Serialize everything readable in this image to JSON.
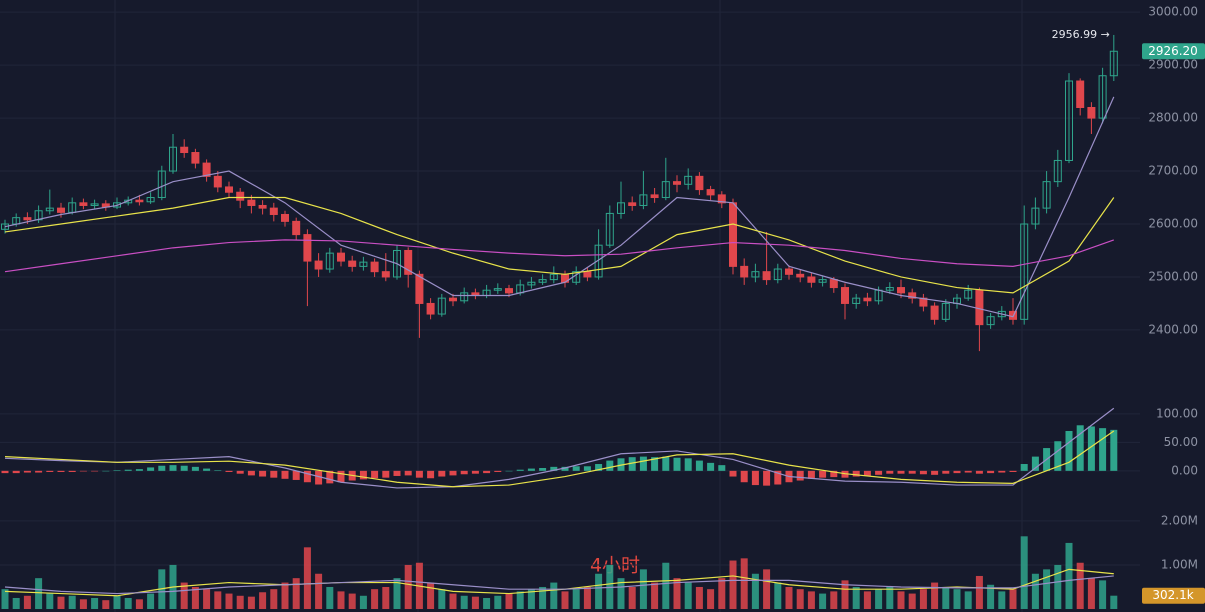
{
  "watermark": "4小时",
  "chart_data": [
    {
      "type": "candlestick",
      "up_color": "#2fa58c",
      "down_color": "#e0474c",
      "ylim": [
        2296,
        3023
      ],
      "yticks": [
        {
          "value": 2400,
          "label": "2400.00"
        },
        {
          "value": 2500,
          "label": "2500.00"
        },
        {
          "value": 2600,
          "label": "2600.00"
        },
        {
          "value": 2700,
          "label": "2700.00"
        },
        {
          "value": 2800,
          "label": "2800.00"
        },
        {
          "value": 2900,
          "label": "2900.00"
        },
        {
          "value": 3000,
          "label": "3000.00"
        }
      ],
      "open": [
        2590,
        2600,
        2612,
        2608,
        2625,
        2630,
        2622,
        2640,
        2635,
        2638,
        2632,
        2640,
        2645,
        2642,
        2650,
        2700,
        2745,
        2735,
        2715,
        2690,
        2670,
        2660,
        2645,
        2635,
        2630,
        2618,
        2605,
        2580,
        2530,
        2515,
        2545,
        2530,
        2520,
        2528,
        2510,
        2500,
        2550,
        2505,
        2450,
        2430,
        2460,
        2455,
        2470,
        2465,
        2475,
        2478,
        2470,
        2485,
        2490,
        2495,
        2505,
        2490,
        2510,
        2500,
        2560,
        2620,
        2640,
        2635,
        2655,
        2650,
        2680,
        2675,
        2690,
        2665,
        2655,
        2640,
        2520,
        2500,
        2510,
        2495,
        2515,
        2505,
        2500,
        2490,
        2495,
        2480,
        2450,
        2460,
        2455,
        2475,
        2480,
        2470,
        2460,
        2445,
        2420,
        2450,
        2460,
        2475,
        2410,
        2425,
        2435,
        2420,
        2600,
        2630,
        2680,
        2720,
        2870,
        2820,
        2800,
        2880
      ],
      "high": [
        2608,
        2620,
        2622,
        2635,
        2665,
        2640,
        2650,
        2648,
        2646,
        2645,
        2650,
        2652,
        2655,
        2660,
        2710,
        2770,
        2760,
        2742,
        2722,
        2700,
        2680,
        2668,
        2655,
        2645,
        2640,
        2625,
        2612,
        2590,
        2545,
        2555,
        2555,
        2540,
        2538,
        2535,
        2545,
        2560,
        2556,
        2512,
        2460,
        2468,
        2468,
        2480,
        2478,
        2485,
        2488,
        2485,
        2495,
        2500,
        2505,
        2520,
        2512,
        2520,
        2518,
        2590,
        2635,
        2680,
        2652,
        2700,
        2668,
        2725,
        2692,
        2705,
        2698,
        2672,
        2662,
        2648,
        2535,
        2525,
        2585,
        2525,
        2522,
        2515,
        2508,
        2502,
        2500,
        2488,
        2468,
        2470,
        2482,
        2490,
        2495,
        2478,
        2468,
        2452,
        2458,
        2468,
        2485,
        2480,
        2432,
        2445,
        2460,
        2635,
        2650,
        2700,
        2740,
        2885,
        2875,
        2830,
        2895,
        2956.99
      ],
      "low": [
        2582,
        2595,
        2600,
        2602,
        2618,
        2612,
        2618,
        2628,
        2628,
        2625,
        2628,
        2635,
        2635,
        2638,
        2645,
        2695,
        2725,
        2705,
        2680,
        2660,
        2650,
        2630,
        2620,
        2618,
        2605,
        2595,
        2570,
        2445,
        2500,
        2508,
        2520,
        2510,
        2512,
        2500,
        2492,
        2495,
        2480,
        2385,
        2420,
        2425,
        2445,
        2450,
        2458,
        2460,
        2468,
        2462,
        2465,
        2478,
        2485,
        2488,
        2480,
        2485,
        2492,
        2495,
        2555,
        2610,
        2625,
        2628,
        2640,
        2645,
        2660,
        2665,
        2655,
        2645,
        2630,
        2505,
        2485,
        2490,
        2485,
        2488,
        2495,
        2490,
        2480,
        2482,
        2470,
        2420,
        2440,
        2445,
        2448,
        2468,
        2460,
        2450,
        2435,
        2410,
        2415,
        2440,
        2455,
        2360,
        2402,
        2418,
        2410,
        2410,
        2590,
        2620,
        2670,
        2715,
        2805,
        2770,
        2790,
        2870
      ],
      "close": [
        2600,
        2612,
        2608,
        2625,
        2630,
        2622,
        2640,
        2635,
        2638,
        2632,
        2640,
        2645,
        2642,
        2650,
        2700,
        2745,
        2735,
        2715,
        2690,
        2670,
        2660,
        2645,
        2635,
        2630,
        2618,
        2605,
        2580,
        2530,
        2515,
        2545,
        2530,
        2520,
        2528,
        2510,
        2500,
        2550,
        2505,
        2450,
        2430,
        2460,
        2455,
        2470,
        2465,
        2475,
        2478,
        2470,
        2485,
        2490,
        2495,
        2505,
        2490,
        2510,
        2500,
        2560,
        2620,
        2640,
        2635,
        2655,
        2650,
        2680,
        2675,
        2690,
        2665,
        2655,
        2640,
        2520,
        2500,
        2510,
        2495,
        2515,
        2505,
        2500,
        2490,
        2495,
        2480,
        2450,
        2460,
        2455,
        2475,
        2480,
        2470,
        2460,
        2445,
        2420,
        2450,
        2460,
        2475,
        2410,
        2425,
        2435,
        2420,
        2600,
        2630,
        2680,
        2720,
        2870,
        2820,
        2800,
        2880,
        2926.2
      ],
      "line_x": [
        0,
        5,
        10,
        15,
        20,
        25,
        30,
        35,
        40,
        45,
        50,
        55,
        60,
        65,
        70,
        75,
        80,
        85,
        90,
        95,
        99
      ],
      "lines": [
        {
          "color": "#9a8fc8",
          "values": [
            2595,
            2618,
            2635,
            2680,
            2700,
            2640,
            2560,
            2525,
            2465,
            2465,
            2490,
            2560,
            2650,
            2640,
            2520,
            2490,
            2465,
            2450,
            2425,
            2650,
            2840
          ]
        },
        {
          "color": "#e8e34a",
          "values": [
            2585,
            2600,
            2615,
            2630,
            2650,
            2650,
            2620,
            2580,
            2545,
            2515,
            2505,
            2520,
            2580,
            2600,
            2570,
            2530,
            2500,
            2480,
            2470,
            2530,
            2650
          ]
        },
        {
          "color": "#c94fc4",
          "values": [
            2510,
            2525,
            2540,
            2555,
            2565,
            2570,
            2568,
            2560,
            2552,
            2545,
            2540,
            2543,
            2555,
            2565,
            2560,
            2550,
            2535,
            2525,
            2520,
            2540,
            2570
          ]
        }
      ],
      "high_marker": {
        "value": 2956.99,
        "label": "2956.99 →"
      },
      "last_price": {
        "value": 2926.2,
        "label": "2926.20",
        "color": "#2fa58c"
      }
    },
    {
      "type": "macd",
      "up_color": "#2fa58c",
      "down_color": "#e0474c",
      "ylim": [
        -60,
        142
      ],
      "yticks": [
        {
          "value": 0,
          "label": "0.00"
        },
        {
          "value": 50,
          "label": "50.00"
        },
        {
          "value": 100,
          "label": "100.00"
        }
      ],
      "values": [
        -4,
        -4,
        -3,
        -3,
        -2,
        -2,
        -2,
        -1,
        -1,
        0,
        1,
        2,
        3,
        6,
        9,
        10,
        9,
        7,
        4,
        1,
        -2,
        -5,
        -8,
        -10,
        -12,
        -14,
        -16,
        -20,
        -24,
        -22,
        -20,
        -17,
        -15,
        -13,
        -12,
        -9,
        -8,
        -12,
        -13,
        -10,
        -8,
        -6,
        -5,
        -4,
        -2,
        0,
        2,
        4,
        5,
        7,
        7,
        8,
        8,
        12,
        18,
        22,
        24,
        25,
        24,
        25,
        23,
        22,
        18,
        14,
        10,
        -10,
        -20,
        -25,
        -26,
        -24,
        -20,
        -17,
        -14,
        -12,
        -11,
        -12,
        -10,
        -9,
        -7,
        -5,
        -5,
        -5,
        -6,
        -7,
        -5,
        -4,
        -3,
        -5,
        -4,
        -3,
        -2,
        12,
        25,
        40,
        52,
        70,
        80,
        78,
        75,
        72
      ],
      "line_x": [
        0,
        5,
        10,
        15,
        20,
        25,
        30,
        35,
        40,
        45,
        50,
        55,
        60,
        65,
        70,
        75,
        80,
        85,
        90,
        95,
        99
      ],
      "lines": [
        {
          "color": "#9a8fc8",
          "values": [
            22,
            18,
            15,
            20,
            25,
            5,
            -20,
            -30,
            -28,
            -15,
            5,
            30,
            35,
            20,
            -10,
            -18,
            -20,
            -25,
            -25,
            50,
            110
          ]
        },
        {
          "color": "#e8e34a",
          "values": [
            25,
            20,
            15,
            15,
            17,
            10,
            -5,
            -20,
            -28,
            -25,
            -10,
            10,
            28,
            30,
            10,
            -5,
            -15,
            -20,
            -22,
            15,
            70
          ]
        }
      ]
    },
    {
      "type": "volume",
      "ylim": [
        0,
        2270000
      ],
      "yticks": [
        {
          "value": 1000000,
          "label": "1.00M"
        },
        {
          "value": 2000000,
          "label": "2.00M"
        }
      ],
      "values": [
        450000,
        250000,
        300000,
        700000,
        350000,
        280000,
        300000,
        220000,
        250000,
        200000,
        300000,
        250000,
        220000,
        350000,
        900000,
        1000000,
        600000,
        500000,
        450000,
        400000,
        350000,
        300000,
        280000,
        380000,
        450000,
        600000,
        700000,
        1400000,
        800000,
        500000,
        400000,
        350000,
        300000,
        450000,
        500000,
        700000,
        1000000,
        1050000,
        600000,
        450000,
        350000,
        300000,
        280000,
        250000,
        300000,
        350000,
        400000,
        450000,
        500000,
        600000,
        400000,
        450000,
        500000,
        800000,
        1000000,
        700000,
        500000,
        900000,
        600000,
        1050000,
        700000,
        600000,
        500000,
        450000,
        700000,
        1100000,
        1150000,
        800000,
        900000,
        600000,
        500000,
        450000,
        400000,
        350000,
        400000,
        650000,
        500000,
        400000,
        450000,
        500000,
        400000,
        350000,
        450000,
        600000,
        500000,
        450000,
        400000,
        750000,
        550000,
        400000,
        450000,
        1650000,
        800000,
        900000,
        1000000,
        1500000,
        1050000,
        700000,
        650000,
        302100
      ],
      "line_x": [
        0,
        5,
        10,
        15,
        20,
        25,
        30,
        35,
        40,
        45,
        50,
        55,
        60,
        65,
        70,
        75,
        80,
        85,
        90,
        95,
        99
      ],
      "lines": [
        {
          "color": "#e8e34a",
          "values": [
            400000,
            350000,
            300000,
            500000,
            600000,
            550000,
            600000,
            600000,
            400000,
            350000,
            450000,
            600000,
            650000,
            750000,
            550000,
            450000,
            450000,
            500000,
            450000,
            900000,
            800000
          ]
        },
        {
          "color": "#9a8fc8",
          "values": [
            500000,
            400000,
            350000,
            400000,
            500000,
            550000,
            600000,
            650000,
            550000,
            450000,
            450000,
            500000,
            600000,
            650000,
            650000,
            550000,
            500000,
            480000,
            480000,
            650000,
            750000
          ]
        }
      ],
      "last_volume": {
        "value": 302100,
        "label": "302.1k",
        "color": "#d4962a"
      }
    }
  ]
}
